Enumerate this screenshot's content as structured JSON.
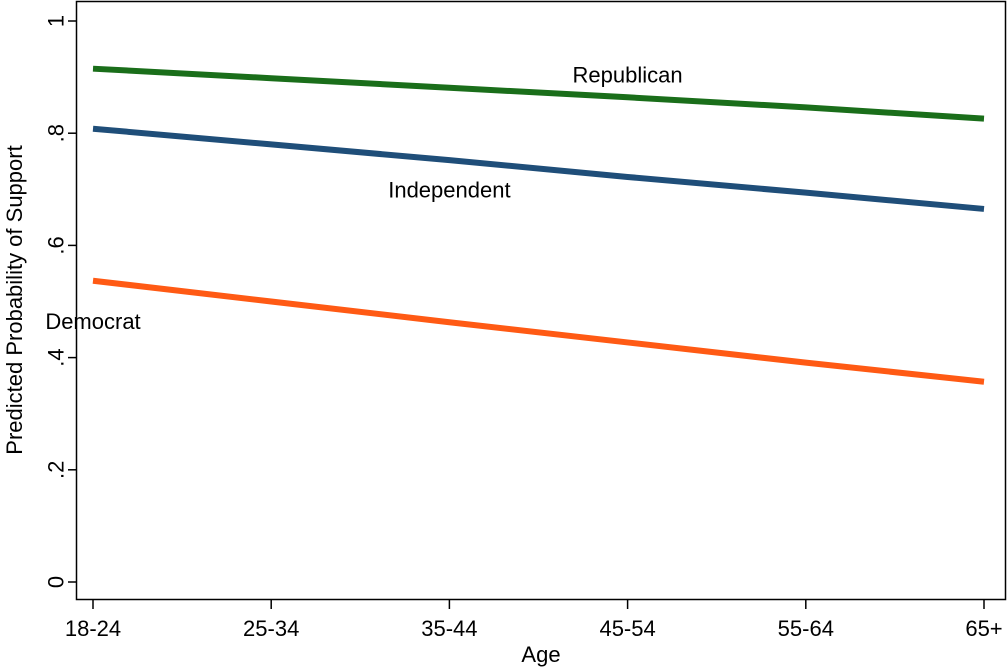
{
  "chart_data": {
    "type": "line",
    "xlabel": "Age",
    "ylabel": "Predicted Probability of Support",
    "categories": [
      "18-24",
      "25-34",
      "35-44",
      "45-54",
      "55-64",
      "65+"
    ],
    "yticks": [
      {
        "value": 0,
        "label": "0"
      },
      {
        "value": 0.2,
        "label": ".2"
      },
      {
        "value": 0.4,
        "label": ".4"
      },
      {
        "value": 0.6,
        "label": ".6"
      },
      {
        "value": 0.8,
        "label": ".8"
      },
      {
        "value": 1,
        "label": "1"
      }
    ],
    "ylim": [
      0,
      1
    ],
    "grid": false,
    "series": [
      {
        "name": "Republican",
        "color": "#1a6e1a",
        "values": [
          0.915,
          0.898,
          0.881,
          0.864,
          0.846,
          0.826
        ],
        "label_at": {
          "category": "45-54",
          "y": 0.905
        }
      },
      {
        "name": "Independent",
        "color": "#1f4e79",
        "values": [
          0.808,
          0.78,
          0.752,
          0.722,
          0.694,
          0.665
        ],
        "label_at": {
          "category": "35-44",
          "y": 0.7
        }
      },
      {
        "name": "Democrat",
        "color": "#ff5a14",
        "values": [
          0.537,
          0.5,
          0.463,
          0.427,
          0.391,
          0.357
        ],
        "label_at": {
          "category": "18-24",
          "y": 0.465
        }
      }
    ]
  }
}
